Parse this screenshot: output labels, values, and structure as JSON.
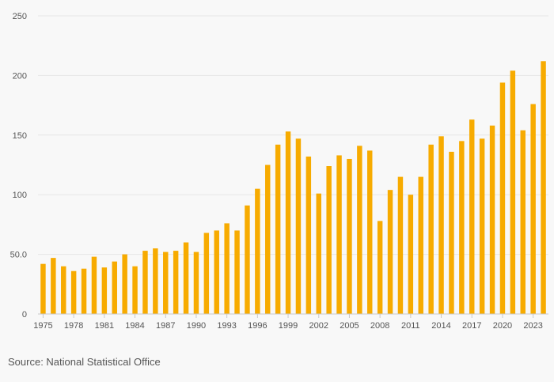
{
  "chart_data": {
    "type": "bar",
    "x": [
      1975,
      1976,
      1977,
      1978,
      1979,
      1980,
      1981,
      1982,
      1983,
      1984,
      1985,
      1986,
      1987,
      1988,
      1989,
      1990,
      1991,
      1992,
      1993,
      1994,
      1995,
      1996,
      1997,
      1998,
      1999,
      2000,
      2001,
      2002,
      2003,
      2004,
      2005,
      2006,
      2007,
      2008,
      2009,
      2010,
      2011,
      2012,
      2013,
      2014,
      2015,
      2016,
      2017,
      2018,
      2019,
      2020,
      2021,
      2022,
      2023,
      2024
    ],
    "values": [
      42,
      47,
      40,
      36,
      38,
      48,
      39,
      44,
      50,
      40,
      53,
      55,
      52,
      53,
      60,
      52,
      68,
      70,
      76,
      70,
      91,
      105,
      125,
      142,
      153,
      147,
      132,
      101,
      124,
      133,
      130,
      141,
      137,
      78,
      104,
      115,
      100,
      115,
      142,
      149,
      136,
      145,
      163,
      147,
      158,
      194,
      204,
      154,
      176,
      212
    ],
    "x_tick_labels": [
      "1975",
      "1978",
      "1981",
      "1984",
      "1987",
      "1990",
      "1993",
      "1996",
      "1999",
      "2002",
      "2005",
      "2008",
      "2011",
      "2014",
      "2017",
      "2020",
      "2023"
    ],
    "y_ticks": [
      0,
      50,
      100,
      150,
      200,
      250
    ],
    "y_tick_labels": [
      "0",
      "50.0",
      "100",
      "150",
      "200",
      "250"
    ],
    "ylim": [
      0,
      250
    ],
    "title": "",
    "xlabel": "",
    "ylabel": "",
    "grid": true,
    "bar_color": "#f7ab00",
    "gridline_color": "#e6e6e6",
    "axis_color": "#c8c8c8"
  },
  "source": {
    "text": "Source: National Statistical Office"
  }
}
